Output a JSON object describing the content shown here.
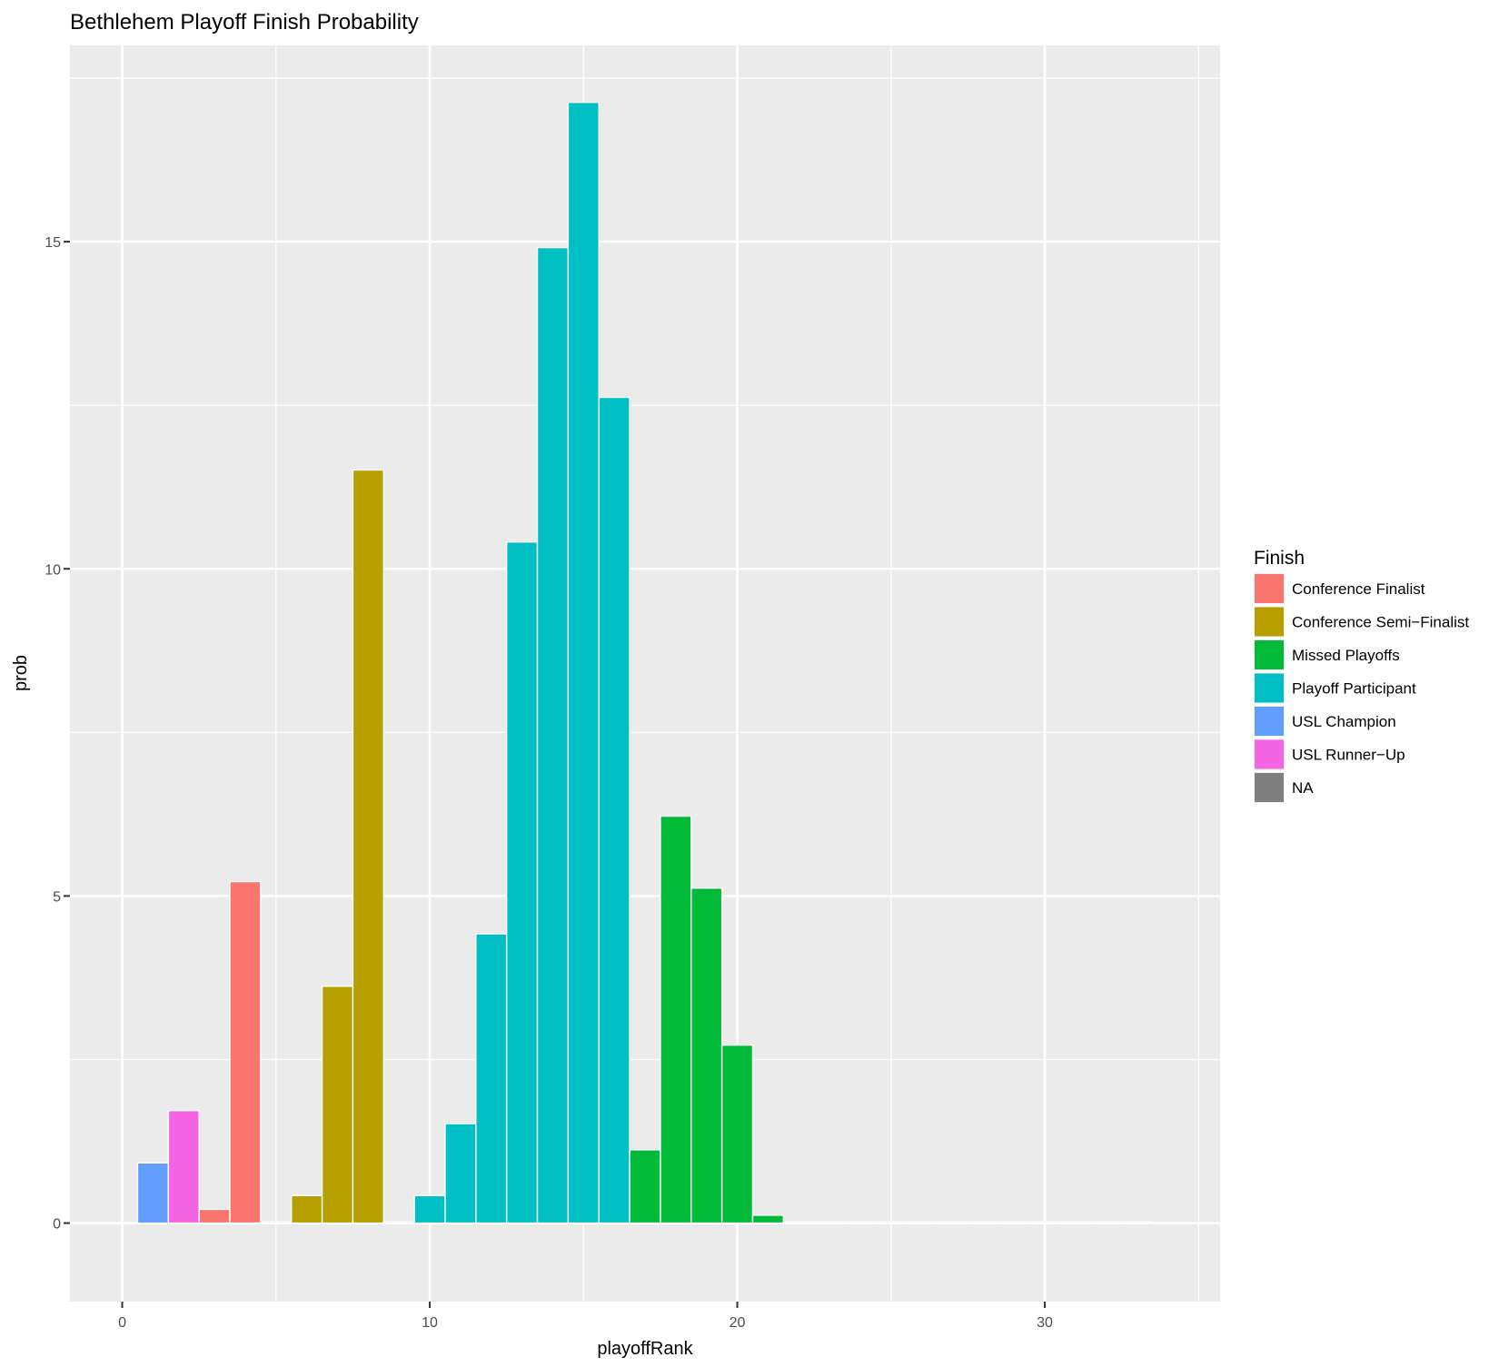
{
  "chart_data": {
    "type": "bar",
    "title": "Bethlehem Playoff Finish Probability",
    "xlabel": "playoffRank",
    "ylabel": "prob",
    "xlim": [
      -1.7,
      35.7
    ],
    "ylim": [
      -1.2,
      18.0
    ],
    "x_ticks": [
      0,
      10,
      20,
      30
    ],
    "y_ticks": [
      0,
      5,
      10,
      15
    ],
    "x_tick_labels": [
      "0",
      "10",
      "20",
      "30"
    ],
    "y_tick_labels": [
      "0",
      "5",
      "10",
      "15"
    ],
    "grid": true,
    "legend": {
      "title": "Finish",
      "placement": "right",
      "entries": [
        {
          "label": "Conference Finalist",
          "color": "#F8766D"
        },
        {
          "label": "Conference Semi−Finalist",
          "color": "#B79F00"
        },
        {
          "label": "Missed Playoffs",
          "color": "#00BA38"
        },
        {
          "label": "Playoff Participant",
          "color": "#00BFC4"
        },
        {
          "label": "USL Champion",
          "color": "#619CFF"
        },
        {
          "label": "USL Runner−Up",
          "color": "#F564E3"
        },
        {
          "label": "NA",
          "color": "#7F7F7F"
        }
      ]
    },
    "bars": [
      {
        "x": 1,
        "y": 0.92,
        "finish": "USL Champion"
      },
      {
        "x": 2,
        "y": 1.72,
        "finish": "USL Runner−Up"
      },
      {
        "x": 3,
        "y": 0.21,
        "finish": "Conference Finalist"
      },
      {
        "x": 4,
        "y": 5.22,
        "finish": "Conference Finalist"
      },
      {
        "x": 5,
        "y": 0.02,
        "finish": "Conference Semi−Finalist"
      },
      {
        "x": 6,
        "y": 0.42,
        "finish": "Conference Semi−Finalist"
      },
      {
        "x": 7,
        "y": 3.62,
        "finish": "Conference Semi−Finalist"
      },
      {
        "x": 8,
        "y": 11.51,
        "finish": "Conference Semi−Finalist"
      },
      {
        "x": 9,
        "y": 0.02,
        "finish": "Playoff Participant"
      },
      {
        "x": 10,
        "y": 0.42,
        "finish": "Playoff Participant"
      },
      {
        "x": 11,
        "y": 1.52,
        "finish": "Playoff Participant"
      },
      {
        "x": 12,
        "y": 4.42,
        "finish": "Playoff Participant"
      },
      {
        "x": 13,
        "y": 10.41,
        "finish": "Playoff Participant"
      },
      {
        "x": 14,
        "y": 14.91,
        "finish": "Playoff Participant"
      },
      {
        "x": 15,
        "y": 17.13,
        "finish": "Playoff Participant"
      },
      {
        "x": 16,
        "y": 12.62,
        "finish": "Playoff Participant"
      },
      {
        "x": 17,
        "y": 1.12,
        "finish": "Missed Playoffs"
      },
      {
        "x": 18,
        "y": 6.22,
        "finish": "Missed Playoffs"
      },
      {
        "x": 19,
        "y": 5.12,
        "finish": "Missed Playoffs"
      },
      {
        "x": 20,
        "y": 2.72,
        "finish": "Missed Playoffs"
      },
      {
        "x": 21,
        "y": 0.12,
        "finish": "Missed Playoffs"
      },
      {
        "x": 22,
        "y": 0.02,
        "finish": "NA"
      },
      {
        "x": 23,
        "y": 0.02,
        "finish": "NA"
      },
      {
        "x": 24,
        "y": 0.02,
        "finish": "NA"
      },
      {
        "x": 25,
        "y": 0.02,
        "finish": "NA"
      },
      {
        "x": 26,
        "y": 0.02,
        "finish": "NA"
      },
      {
        "x": 27,
        "y": 0.02,
        "finish": "NA"
      },
      {
        "x": 28,
        "y": 0.02,
        "finish": "NA"
      },
      {
        "x": 29,
        "y": 0.02,
        "finish": "NA"
      },
      {
        "x": 30,
        "y": 0.02,
        "finish": "NA"
      },
      {
        "x": 31,
        "y": 0.02,
        "finish": "NA"
      },
      {
        "x": 32,
        "y": 0.02,
        "finish": "NA"
      },
      {
        "x": 33,
        "y": 0.02,
        "finish": "NA"
      }
    ]
  }
}
